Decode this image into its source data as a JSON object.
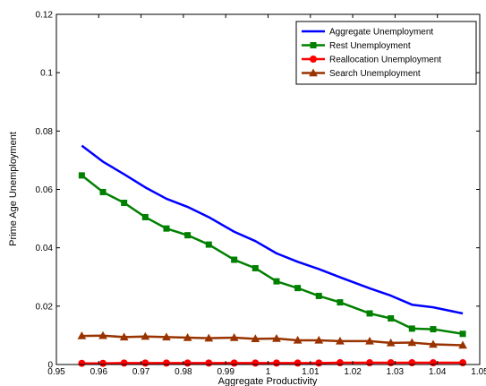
{
  "chart_data": {
    "type": "line",
    "xlabel": "Aggregate Productivity",
    "ylabel": "Prime Age Unemployment",
    "xlim": [
      0.95,
      1.05
    ],
    "ylim": [
      0,
      0.12
    ],
    "xticks": [
      0.95,
      0.96,
      0.97,
      0.98,
      0.99,
      1.0,
      1.01,
      1.02,
      1.03,
      1.04,
      1.05
    ],
    "xtick_labels": [
      "0.95",
      "0.96",
      "0.97",
      "0.98",
      "0.99",
      "1",
      "1.01",
      "1.02",
      "1.03",
      "1.04",
      "1.05"
    ],
    "yticks": [
      0,
      0.02,
      0.04,
      0.06,
      0.08,
      0.1,
      0.12
    ],
    "ytick_labels": [
      "0",
      "0.02",
      "0.04",
      "0.06",
      "0.08",
      "0.1",
      "0.12"
    ],
    "grid": false,
    "legend_position": "top-right",
    "x": [
      0.956,
      0.961,
      0.966,
      0.971,
      0.976,
      0.981,
      0.986,
      0.992,
      0.997,
      1.002,
      1.007,
      1.012,
      1.017,
      1.024,
      1.029,
      1.034,
      1.039,
      1.046
    ],
    "series": [
      {
        "name": "Aggregate Unemployment",
        "color": "#0000ff",
        "marker": "none",
        "values": [
          0.075,
          0.0695,
          0.0652,
          0.0607,
          0.0568,
          0.054,
          0.0505,
          0.0455,
          0.0423,
          0.0381,
          0.0352,
          0.0327,
          0.0299,
          0.0261,
          0.0236,
          0.0205,
          0.0196,
          0.0175
        ]
      },
      {
        "name": "Rest Unemployment",
        "color": "#008000",
        "marker": "square",
        "values": [
          0.0648,
          0.0591,
          0.0554,
          0.0505,
          0.0466,
          0.0443,
          0.0411,
          0.0359,
          0.033,
          0.0285,
          0.0262,
          0.0235,
          0.0213,
          0.0175,
          0.0158,
          0.0123,
          0.0121,
          0.0105
        ]
      },
      {
        "name": "Reallocation Unemployment",
        "color": "#ff0000",
        "marker": "circle",
        "values": [
          0.0004,
          0.0004,
          0.0005,
          0.0005,
          0.0005,
          0.0005,
          0.0005,
          0.0005,
          0.0005,
          0.0005,
          0.0005,
          0.0005,
          0.0006,
          0.0006,
          0.0006,
          0.0006,
          0.0006,
          0.0006
        ]
      },
      {
        "name": "Search Unemployment",
        "color": "#993300",
        "marker": "triangle",
        "values": [
          0.0098,
          0.0099,
          0.0094,
          0.0096,
          0.0094,
          0.0092,
          0.009,
          0.0092,
          0.0088,
          0.0089,
          0.0083,
          0.0083,
          0.008,
          0.008,
          0.0074,
          0.0075,
          0.0069,
          0.0066
        ]
      }
    ]
  }
}
